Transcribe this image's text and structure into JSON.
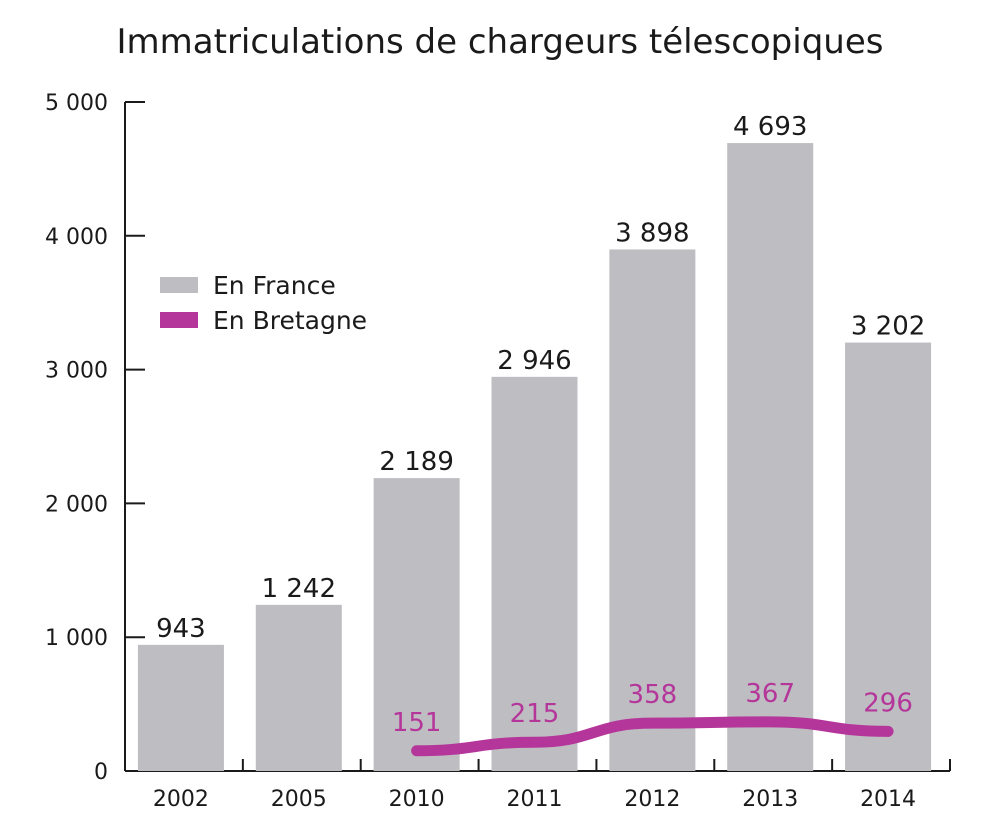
{
  "chart_data": {
    "type": "bar",
    "title": "Immatriculations de chargeurs télescopiques",
    "categories": [
      "2002",
      "2005",
      "2010",
      "2011",
      "2012",
      "2013",
      "2014"
    ],
    "ylim": [
      0,
      5000
    ],
    "yticks": [
      0,
      1000,
      2000,
      3000,
      4000,
      5000
    ],
    "ytick_labels": [
      "0",
      "1 000",
      "2 000",
      "3 000",
      "4 000",
      "5 000"
    ],
    "grid": false,
    "legend_position": "left",
    "series": [
      {
        "name": "En France",
        "kind": "bar",
        "color": "#bebdc1",
        "values": [
          943,
          1242,
          2189,
          2946,
          3898,
          4693,
          3202
        ],
        "labels": [
          "943",
          "1 242",
          "2 189",
          "2 946",
          "3 898",
          "4 693",
          "3 202"
        ]
      },
      {
        "name": "En Bretagne",
        "kind": "line",
        "color": "#b5369a",
        "values": [
          null,
          null,
          151,
          215,
          358,
          367,
          296
        ],
        "labels": [
          "",
          "",
          "151",
          "215",
          "358",
          "367",
          "296"
        ]
      }
    ]
  }
}
